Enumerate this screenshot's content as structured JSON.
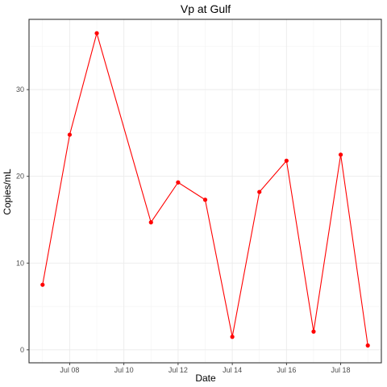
{
  "chart_data": {
    "type": "line",
    "title": "Vp at Gulf",
    "xlabel": "Date",
    "ylabel": "Copies/mL",
    "x_type": "date",
    "xlim": [
      "2024-07-06T12:00",
      "2024-07-19T12:00"
    ],
    "ylim": [
      -1.5,
      38.1
    ],
    "x_ticks": [
      {
        "value": "2024-07-08",
        "label": "Jul 08"
      },
      {
        "value": "2024-07-10",
        "label": "Jul 10"
      },
      {
        "value": "2024-07-12",
        "label": "Jul 12"
      },
      {
        "value": "2024-07-14",
        "label": "Jul 14"
      },
      {
        "value": "2024-07-16",
        "label": "Jul 16"
      },
      {
        "value": "2024-07-18",
        "label": "Jul 18"
      }
    ],
    "y_ticks": [
      {
        "value": 0,
        "label": "0"
      },
      {
        "value": 10,
        "label": "10"
      },
      {
        "value": 20,
        "label": "20"
      },
      {
        "value": 30,
        "label": "30"
      }
    ],
    "grid": true,
    "legend": "none",
    "series": [
      {
        "color": "#ff0000",
        "x": [
          "2024-07-07",
          "2024-07-08",
          "2024-07-09",
          "2024-07-11",
          "2024-07-12",
          "2024-07-13",
          "2024-07-14",
          "2024-07-15",
          "2024-07-16",
          "2024-07-17",
          "2024-07-18",
          "2024-07-19"
        ],
        "y": [
          7.5,
          24.8,
          36.5,
          14.7,
          19.3,
          17.3,
          1.5,
          18.2,
          21.8,
          2.1,
          22.5,
          0.5
        ]
      }
    ]
  }
}
